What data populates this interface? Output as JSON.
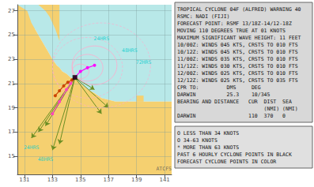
{
  "chart_data": {
    "type": "map",
    "xlim": [
      130.5,
      141.5
    ],
    "ylim": [
      13.5,
      27.5
    ],
    "xticks": [
      131,
      133,
      135,
      137,
      139,
      141
    ],
    "yticks": [
      15,
      17,
      19,
      21,
      23,
      25,
      27
    ],
    "grid": true,
    "regions": [
      {
        "color": "#b8e8e8",
        "x": [
          130.5,
          141.5,
          141.5,
          137.5,
          136.5,
          136.0,
          135.5,
          135.0,
          134.7,
          134.3,
          134.0,
          133.7,
          133.5,
          133.3,
          133.0,
          132.5,
          132.0,
          131.5,
          131.2,
          130.5
        ],
        "y": [
          27.5,
          27.5,
          19.5,
          19.5,
          19.8,
          20.2,
          20.5,
          21.0,
          21.3,
          21.5,
          21.8,
          22.0,
          22.3,
          22.5,
          23.0,
          24.0,
          25.0,
          26.0,
          27.0,
          27.5
        ]
      },
      {
        "color": "#b8e8e8",
        "x": [
          130.5,
          141.5,
          141.5,
          130.5
        ],
        "y": [
          25.5,
          25.5,
          27.5,
          27.5
        ]
      },
      {
        "color": "#f5d070",
        "x": [
          130.5,
          132.0,
          132.5,
          132.8,
          133.2,
          133.5,
          133.5,
          130.5
        ],
        "y": [
          27.5,
          27.5,
          27.0,
          26.5,
          25.5,
          24.5,
          27.5,
          27.5
        ]
      },
      {
        "color": "#f5d070",
        "x": [
          130.5,
          141.5,
          141.5,
          137.5,
          136.5,
          136.0,
          135.5,
          135.0,
          134.7,
          134.3,
          134.0,
          133.7,
          133.5,
          133.3,
          133.0,
          132.5,
          132.0,
          131.5,
          131.2,
          130.5
        ],
        "y": [
          13.5,
          13.5,
          19.5,
          19.5,
          19.8,
          20.2,
          20.5,
          21.0,
          21.3,
          21.5,
          21.8,
          22.0,
          22.3,
          22.5,
          23.0,
          24.0,
          25.0,
          26.0,
          27.0,
          27.5
        ]
      },
      {
        "color": "#f5d070",
        "x": [
          139.0,
          139.5,
          139.5,
          139.0
        ],
        "y": [
          19.5,
          19.5,
          20.0,
          20.0
        ]
      }
    ],
    "series": [
      {
        "type": "arrows",
        "color": "#6b8e23",
        "segments": [
          [
            [
              134.6,
              21.5
            ],
            [
              131.5,
              16.5
            ]
          ],
          [
            [
              134.6,
              21.5
            ],
            [
              132.0,
              17.0
            ]
          ],
          [
            [
              134.6,
              21.5
            ],
            [
              132.5,
              17.5
            ]
          ],
          [
            [
              134.6,
              21.5
            ],
            [
              133.0,
              15.5
            ]
          ],
          [
            [
              134.6,
              21.5
            ],
            [
              133.5,
              16.0
            ]
          ],
          [
            [
              134.6,
              21.5
            ],
            [
              136.5,
              18.5
            ]
          ],
          [
            [
              134.6,
              21.5
            ],
            [
              137.0,
              19.0
            ]
          ],
          [
            [
              134.6,
              21.5
            ],
            [
              136.0,
              20.5
            ]
          ]
        ]
      },
      {
        "type": "line",
        "color": "#ff44bb",
        "marker": "circle",
        "x": [
          133.0,
          133.5,
          134.0,
          134.3,
          134.6
        ],
        "y": [
          18.5,
          19.5,
          20.5,
          21.0,
          21.5
        ]
      },
      {
        "type": "circles",
        "color": "#ffaacc",
        "line_style": "solid",
        "circles": [
          [
            135.0,
            22.0,
            0.6
          ],
          [
            135.5,
            22.3,
            1.1
          ],
          [
            136.0,
            22.5,
            1.6
          ]
        ]
      },
      {
        "type": "circles",
        "color": "#ffaacc",
        "line_style": "dashed",
        "circles": [
          [
            135.5,
            22.3,
            2.5
          ],
          [
            136.5,
            22.5,
            3.5
          ]
        ]
      },
      {
        "type": "line",
        "color": "#cc4400",
        "marker": "circle",
        "x": [
          133.2,
          133.5,
          133.8,
          134.1,
          134.4,
          134.6
        ],
        "y": [
          20.0,
          20.4,
          20.8,
          21.1,
          21.3,
          21.5
        ]
      },
      {
        "type": "line",
        "color": "#ff00ff",
        "marker": "circle",
        "x": [
          134.6,
          135.0,
          135.5,
          136.0
        ],
        "y": [
          21.5,
          22.0,
          22.3,
          22.5
        ]
      },
      {
        "type": "scatter",
        "color": "#000000",
        "marker": "square",
        "x": [
          134.6
        ],
        "y": [
          21.5
        ]
      }
    ],
    "annotations": [
      {
        "text": "24HRS",
        "x": 136.5,
        "y": 24.5,
        "color": "#00cccc"
      },
      {
        "text": "48HRS",
        "x": 138.5,
        "y": 23.5,
        "color": "#00cccc"
      },
      {
        "text": "72HRS",
        "x": 139.5,
        "y": 22.5,
        "color": "#00cccc"
      },
      {
        "text": "24HRS",
        "x": 131.5,
        "y": 15.5,
        "color": "#00cccc"
      },
      {
        "text": "48HRS",
        "x": 132.5,
        "y": 14.5,
        "color": "#00cccc"
      },
      {
        "text": "ATCFS",
        "x": 141.5,
        "y": 13.7,
        "color": "#555555"
      }
    ],
    "info_text": [
      "TROPICAL CYCLONE 04F (ALFRED) WARNING 40",
      "RSMC: NADI (FIJI)",
      "FORECAST POINT: RSMF 13/18Z-14/12-18Z",
      "MOVING 110 DEGREES TRUE AT 01 KNOTS",
      "MAXIMUM SIGNIFICANT WAVE HEIGHT: 11 FEET",
      "10/00Z: WINDS 045 KTS, CRSTS TO 010 FTS",
      "10/12Z: WINDS 045 KTS, CRSTS TO 010 FTS",
      "11/00Z: WINDS 035 KTS, CRSTS TO 010 FTS",
      "11/12Z: WINDS 030 KTS, CRSTS TO 010 FTS",
      "12/00Z: WINDS 025 KTS, CRSTS TO 010 FTS",
      "12/12Z: WINDS 025 KTS, CRSTS TO 035 FTS",
      "CPR TO:         DMS     DEG",
      "DARWIN          25.3    10/345",
      "BEARING AND DISTANCE   CUR  DIST  SEA",
      "                            (NMI) (NMI)",
      "DARWIN                 110  370   0"
    ],
    "legend_text": [
      "O LESS THAN 34 KNOTS",
      "O 34-63 KNOTS",
      "* MORE THAN 63 KNOTS",
      "PAST 6 HOURLY CYCLONE POINTS IN BLACK",
      "FORECAST CYCLONE POINTS IN COLOR"
    ]
  }
}
